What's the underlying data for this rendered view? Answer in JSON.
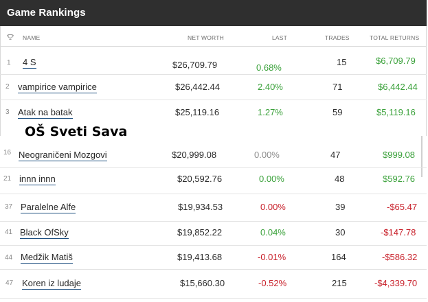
{
  "window": {
    "title": "Game Rankings"
  },
  "table_header": {
    "icon": "trophy-icon",
    "name": "NAME",
    "net_worth": "NET WORTH",
    "last": "LAST",
    "trades": "TRADES",
    "total_returns": "TOTAL RETURNS"
  },
  "top_rows": [
    {
      "rank": "1",
      "name": "4 S",
      "net_worth": "$26,709.79",
      "last": "0.68%",
      "last_dir": "pos",
      "trades": "15",
      "total_returns": "$6,709.79",
      "returns_dir": "pos"
    },
    {
      "rank": "2",
      "name": "vampirice vampirice",
      "net_worth": "$26,442.44",
      "last": "2.40%",
      "last_dir": "pos",
      "trades": "71",
      "total_returns": "$6,442.44",
      "returns_dir": "pos"
    },
    {
      "rank": "3",
      "name": "Atak na batak",
      "net_worth": "$25,119.16",
      "last": "1.27%",
      "last_dir": "pos",
      "trades": "59",
      "total_returns": "$5,119.16",
      "returns_dir": "pos"
    }
  ],
  "overlay_label": "OŠ Sveti Sava",
  "school_rows": [
    {
      "rank": "16",
      "name": "Neograničeni Mozgovi",
      "net_worth": "$20,999.08",
      "last": "0.00%",
      "last_dir": "neu",
      "trades": "47",
      "total_returns": "$999.08",
      "returns_dir": "pos"
    },
    {
      "rank": "21",
      "name": "innn innn",
      "net_worth": "$20,592.76",
      "last": "0.00%",
      "last_dir": "pos",
      "trades": "48",
      "total_returns": "$592.76",
      "returns_dir": "pos"
    },
    {
      "rank": "37",
      "name": "Paralelne Alfe",
      "net_worth": "$19,934.53",
      "last": "0.00%",
      "last_dir": "neg",
      "trades": "39",
      "total_returns": "-$65.47",
      "returns_dir": "neg"
    },
    {
      "rank": "41",
      "name": "Black OfSky",
      "net_worth": "$19,852.22",
      "last": "0.04%",
      "last_dir": "pos",
      "trades": "30",
      "total_returns": "-$147.78",
      "returns_dir": "neg"
    },
    {
      "rank": "44",
      "name": "Medžik Matiš",
      "net_worth": "$19,413.68",
      "last": "-0.01%",
      "last_dir": "neg",
      "trades": "164",
      "total_returns": "-$586.32",
      "returns_dir": "neg"
    },
    {
      "rank": "47",
      "name": "Koren iz ludaje",
      "net_worth": "$15,660.30",
      "last": "-0.52%",
      "last_dir": "neg",
      "trades": "215",
      "total_returns": "-$4,339.70",
      "returns_dir": "neg"
    }
  ]
}
